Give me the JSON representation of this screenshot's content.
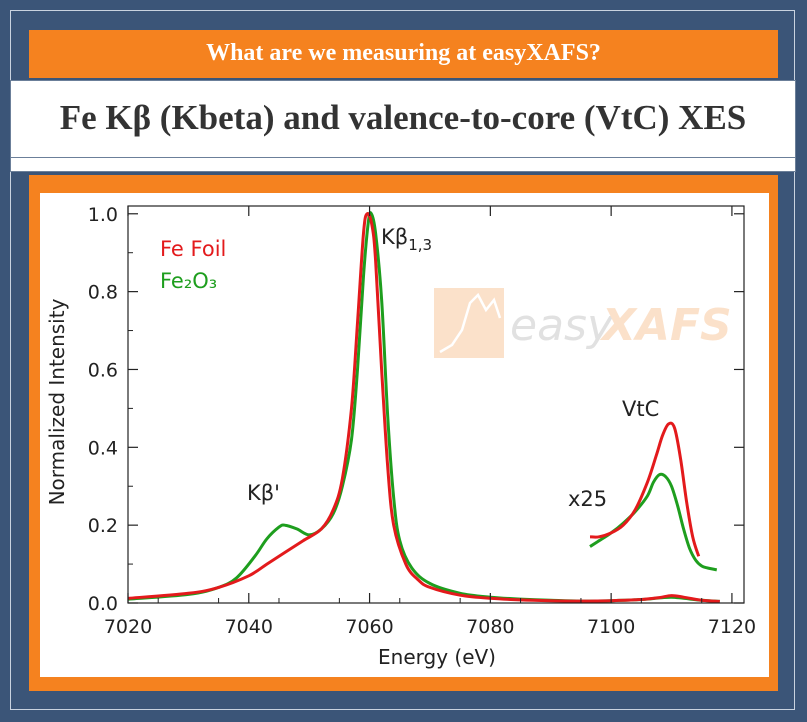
{
  "banner": {
    "text": "What are we measuring at easyXAFS?"
  },
  "title": {
    "text": "Fe Kβ (Kbeta) and valence-to-core (VtC) XES"
  },
  "watermark": {
    "text_plain": "easy",
    "text_bold": "XAFS",
    "color": "#f8c9a0"
  },
  "colors": {
    "orange": "#f5821f",
    "navy": "#3b5578",
    "fe_foil": "#e31a1c",
    "fe2o3": "#1e9e1e"
  },
  "chart_data": {
    "type": "line",
    "xlabel": "Energy (eV)",
    "ylabel": "Normalized Intensity",
    "xlim": [
      7020,
      7122
    ],
    "ylim": [
      0,
      1.02
    ],
    "xticks": [
      "7020",
      "7040",
      "7060",
      "7080",
      "7100",
      "7120"
    ],
    "yticks": [
      "0.0",
      "0.2",
      "0.4",
      "0.6",
      "0.8",
      "1.0"
    ],
    "legend_position": "top-left",
    "annotations": {
      "kbeta13_base": "Kβ",
      "kbeta13_sub": "1,3",
      "kbeta_prime": "Kβ'",
      "vtc": "VtC",
      "x25": "x25"
    },
    "series": [
      {
        "name": "Fe Foil",
        "color": "#e31a1c",
        "x": [
          7020,
          7030,
          7035,
          7040,
          7043,
          7046,
          7049,
          7052,
          7054,
          7055.5,
          7057,
          7058,
          7059,
          7059.6,
          7060.4,
          7061,
          7062,
          7063,
          7064,
          7066,
          7068,
          7070,
          7075,
          7080,
          7085,
          7090,
          7095,
          7100,
          7105,
          7108,
          7110,
          7112,
          7115,
          7118
        ],
        "y": [
          0.012,
          0.025,
          0.04,
          0.07,
          0.1,
          0.13,
          0.16,
          0.19,
          0.24,
          0.32,
          0.5,
          0.72,
          0.95,
          1.0,
          0.97,
          0.88,
          0.6,
          0.35,
          0.2,
          0.1,
          0.06,
          0.04,
          0.02,
          0.012,
          0.008,
          0.006,
          0.005,
          0.006,
          0.009,
          0.014,
          0.019,
          0.015,
          0.007,
          0.004
        ]
      },
      {
        "name": "Fe₂O₃",
        "color": "#1e9e1e",
        "x": [
          7020,
          7030,
          7035,
          7038,
          7041,
          7043,
          7045,
          7046,
          7048,
          7050,
          7052,
          7054,
          7055.5,
          7057,
          7058,
          7059,
          7059.8,
          7060.3,
          7061,
          7062,
          7063,
          7064,
          7065,
          7067,
          7070,
          7075,
          7080,
          7085,
          7090,
          7095,
          7100,
          7105,
          7108,
          7110,
          7112,
          7115,
          7118
        ],
        "y": [
          0.01,
          0.022,
          0.04,
          0.065,
          0.12,
          0.165,
          0.195,
          0.2,
          0.19,
          0.175,
          0.19,
          0.23,
          0.3,
          0.42,
          0.6,
          0.84,
          0.98,
          1.0,
          0.95,
          0.78,
          0.48,
          0.27,
          0.16,
          0.09,
          0.05,
          0.025,
          0.015,
          0.01,
          0.007,
          0.005,
          0.006,
          0.009,
          0.013,
          0.015,
          0.012,
          0.007,
          0.004
        ]
      },
      {
        "name": "Fe Foil x25",
        "color": "#e31a1c",
        "x": [
          7096.5,
          7098,
          7100,
          7102,
          7104,
          7106,
          7107.5,
          7108.5,
          7109.5,
          7110.5,
          7111.5,
          7112.5,
          7113.5,
          7114.5
        ],
        "y": [
          0.17,
          0.17,
          0.18,
          0.2,
          0.24,
          0.31,
          0.38,
          0.43,
          0.46,
          0.45,
          0.37,
          0.26,
          0.17,
          0.12
        ]
      },
      {
        "name": "Fe₂O₃ x25",
        "color": "#1e9e1e",
        "x": [
          7096.5,
          7098,
          7100,
          7102,
          7104,
          7106,
          7107,
          7108,
          7109,
          7110,
          7111,
          7112,
          7113,
          7114,
          7115,
          7116,
          7117.5
        ],
        "y": [
          0.145,
          0.16,
          0.18,
          0.205,
          0.235,
          0.275,
          0.31,
          0.33,
          0.325,
          0.3,
          0.25,
          0.19,
          0.14,
          0.11,
          0.095,
          0.09,
          0.085
        ]
      }
    ]
  }
}
